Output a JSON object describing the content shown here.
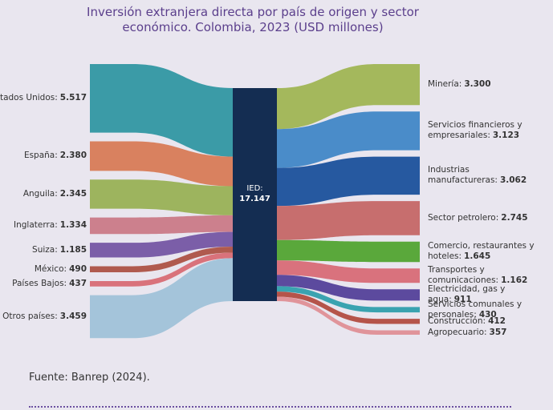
{
  "chart_data": {
    "type": "sankey",
    "title": "Inversión extranjera directa por país de origen y sector económico. Colombia, 2023 (USD millones)",
    "source_note": "Fuente: Banrep (2024).",
    "center": {
      "label": "IED:",
      "value": 17147,
      "value_label": "17.147",
      "color": "#142d52"
    },
    "sources": {
      "names": [
        "Estados Unidos:",
        "España:",
        "Anguila:",
        "Inglaterra:",
        "Suiza:",
        "México:",
        "Países Bajos:",
        "Otros países:"
      ],
      "values": [
        5517,
        2380,
        2345,
        1334,
        1185,
        490,
        437,
        3459
      ],
      "value_labels": [
        "5.517",
        "2.380",
        "2.345",
        "1.334",
        "1.185",
        "490",
        "437",
        "3.459"
      ],
      "colors": [
        "#3b9ba7",
        "#d9815f",
        "#9db45e",
        "#cc808d",
        "#7b5ea8",
        "#b05a4e",
        "#d9727b",
        "#a4c4da"
      ]
    },
    "targets": {
      "names": [
        "Minería:",
        "Servicios financieros y empresariales:",
        "Industrias manufactureras:",
        "Sector petrolero:",
        "Comercio, restaurantes y hoteles:",
        "Transportes y comunicaciones:",
        "Electricidad, gas y agua:",
        "Servicios comunales y personales:",
        "Construcción:",
        "Agropecuario:"
      ],
      "values": [
        3300,
        3123,
        3062,
        2745,
        1645,
        1162,
        911,
        430,
        412,
        357
      ],
      "value_labels": [
        "3.300",
        "3.123",
        "3.062",
        "2.745",
        "1.645",
        "1.162",
        "911",
        "430",
        "412",
        "357"
      ],
      "colors": [
        "#a4b85c",
        "#4a8cc9",
        "#2659a0",
        "#c76e6e",
        "#5aa83b",
        "#d9727d",
        "#5c4a9e",
        "#3aa3b0",
        "#b5544a",
        "#e0949a"
      ]
    }
  }
}
